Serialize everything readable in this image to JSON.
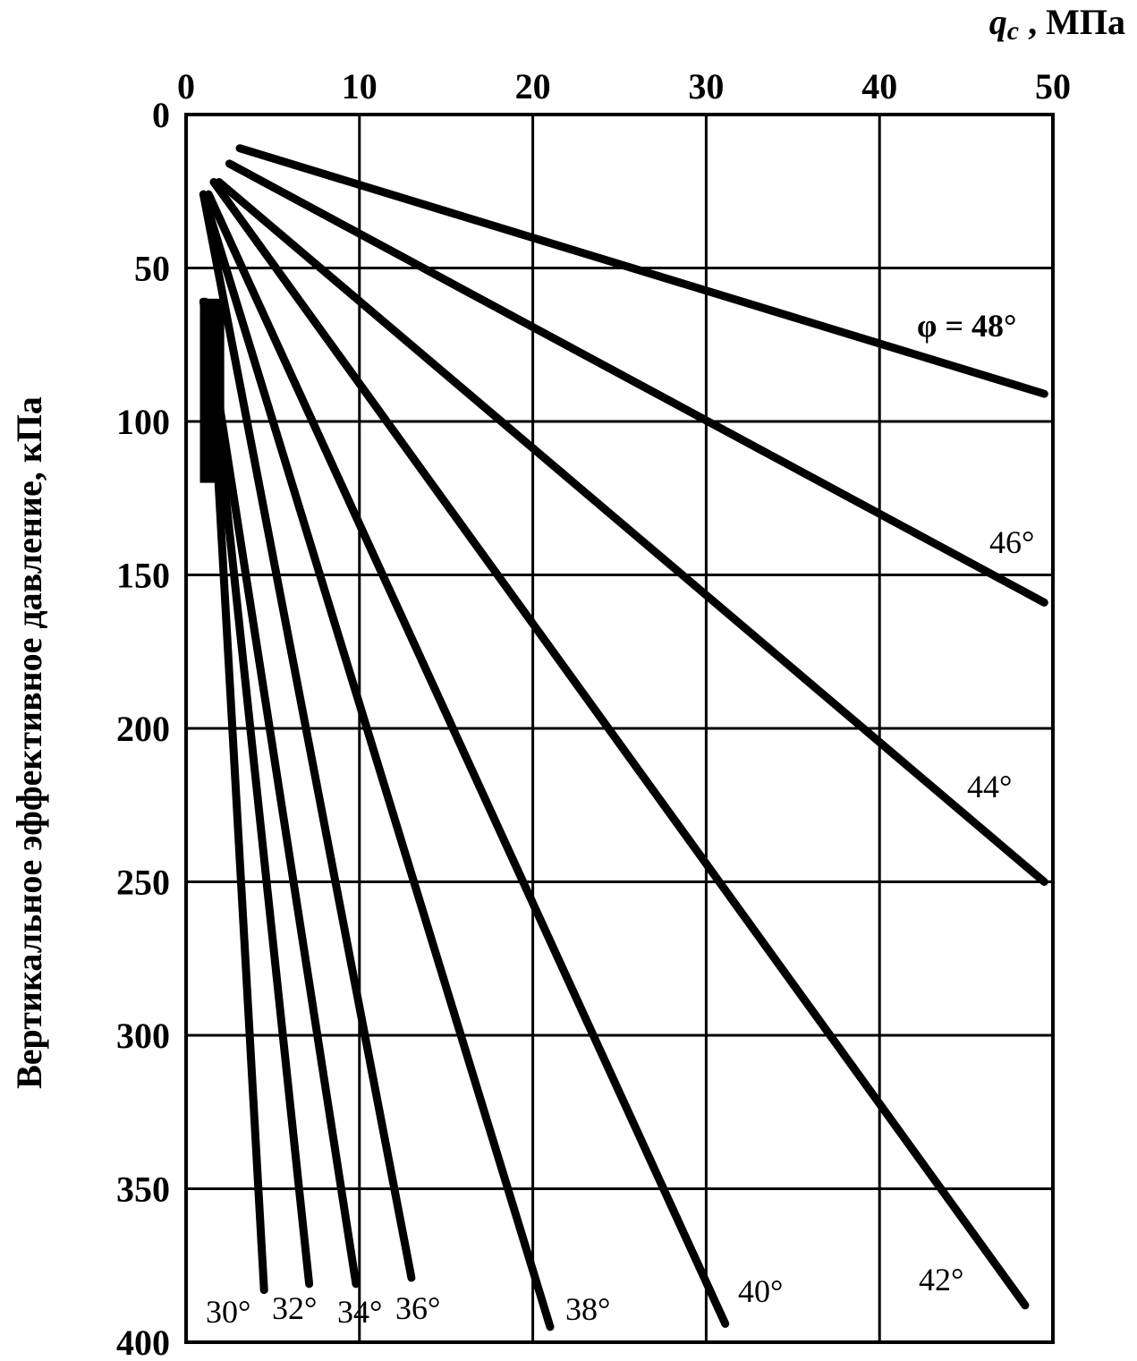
{
  "chart_data": {
    "type": "line",
    "x_axis": {
      "title": "q",
      "title_subscript": "c",
      "title_unit": " , МПа",
      "position": "top",
      "range": [
        0,
        50
      ],
      "ticks": [
        "0",
        "10",
        "20",
        "30",
        "40",
        "50"
      ]
    },
    "y_axis": {
      "title": "Вертикальное эффективное давление, кПа",
      "range": [
        0,
        400
      ],
      "inverted": true,
      "ticks": [
        "0",
        "50",
        "100",
        "150",
        "200",
        "250",
        "300",
        "350",
        "400"
      ]
    },
    "grid": true,
    "series": [
      {
        "name": "φ = 48°",
        "points": [
          [
            3.1,
            11
          ],
          [
            49.5,
            91
          ]
        ]
      },
      {
        "name": "46°",
        "points": [
          [
            2.5,
            16
          ],
          [
            49.5,
            159
          ]
        ]
      },
      {
        "name": "44°",
        "points": [
          [
            1.9,
            22
          ],
          [
            49.5,
            250
          ]
        ]
      },
      {
        "name": "42°",
        "points": [
          [
            1.6,
            22
          ],
          [
            48.4,
            388
          ]
        ]
      },
      {
        "name": "40°",
        "points": [
          [
            1.3,
            26
          ],
          [
            31.1,
            394
          ]
        ]
      },
      {
        "name": "38°",
        "points": [
          [
            1.0,
            26
          ],
          [
            21.0,
            395
          ]
        ]
      },
      {
        "name": "36°",
        "points": [
          [
            1.0,
            26
          ],
          [
            13.0,
            379
          ]
        ]
      },
      {
        "name": "34°",
        "points": [
          [
            1.0,
            61
          ],
          [
            9.8,
            381
          ]
        ]
      },
      {
        "name": "32°",
        "points": [
          [
            1.1,
            61
          ],
          [
            7.1,
            381
          ]
        ]
      },
      {
        "name": "30°",
        "points": [
          [
            1.3,
            63
          ],
          [
            4.5,
            383
          ]
        ]
      }
    ],
    "labels": [
      "φ = 48°",
      "46°",
      "44°",
      "42°",
      "40°",
      "38°",
      "36°",
      "34°",
      "32°",
      "30°"
    ]
  }
}
